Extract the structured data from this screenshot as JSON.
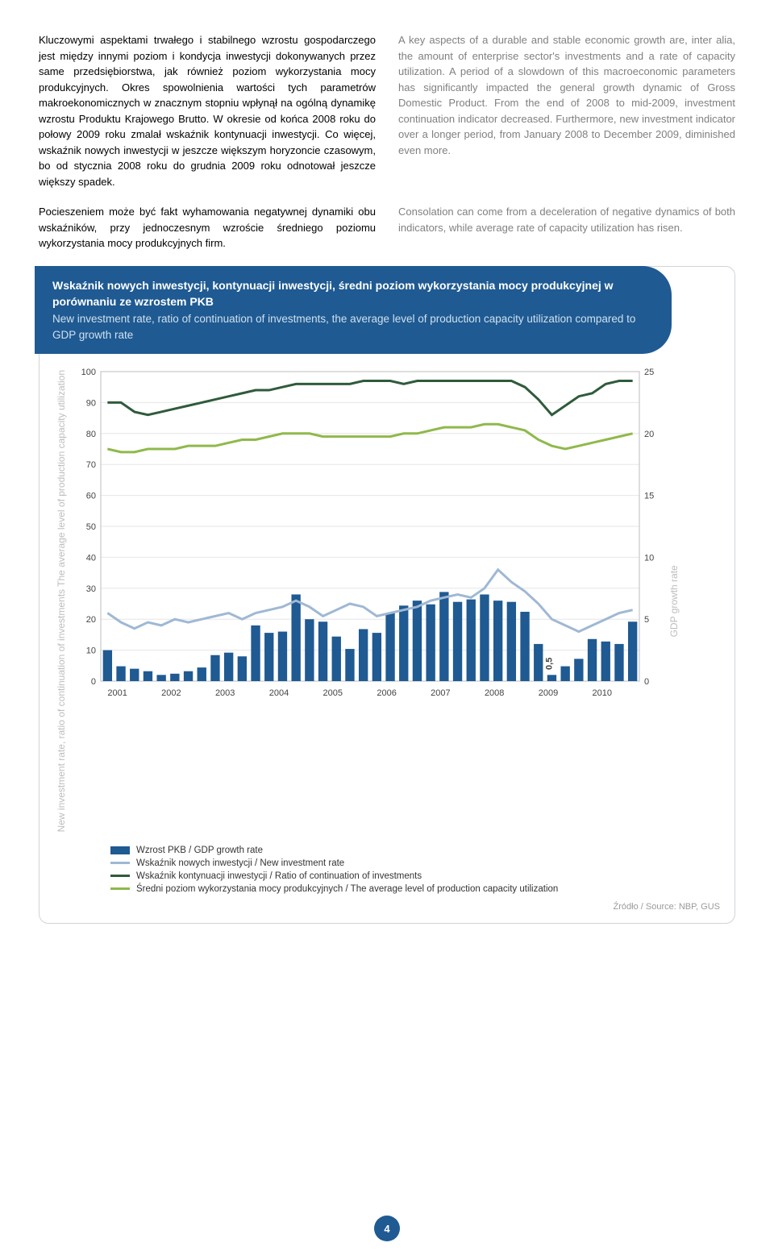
{
  "text": {
    "pl1": "Kluczowymi aspektami trwałego i stabilnego wzrostu gospodarczego jest między innymi poziom i kondycja inwestycji dokonywanych przez same przedsiębiorstwa, jak również poziom wykorzystania mocy produkcyjnych. Okres spowolnienia wartości tych parametrów makroekonomicznych w znacznym stopniu wpłynął na ogólną dynamikę wzrostu Produktu Krajowego Brutto. W okresie od końca 2008 roku do połowy 2009 roku zmalał wskaźnik kontynuacji inwestycji. Co więcej, wskaźnik nowych inwestycji w jeszcze większym horyzoncie czasowym, bo od stycznia 2008 roku do grudnia 2009 roku odnotował jeszcze większy spadek.",
    "en1": "A key aspects of a durable and stable economic growth are, inter alia, the amount of enterprise sector's investments and a rate of capacity utilization. A period of a slowdown of this macroeconomic parameters has significantly impacted the general growth dynamic of Gross Domestic Product. From the end of 2008 to mid-2009, investment continuation indicator decreased. Furthermore, new investment indicator over a longer period, from January 2008 to December 2009, diminished even more.",
    "pl2": "Pocieszeniem może być fakt wyhamowania negatywnej dynamiki obu wskaźników, przy jednoczesnym wzroście średniego poziomu wykorzystania mocy produkcyjnych firm.",
    "en2": "Consolation can come from a deceleration of negative dynamics of both indicators, while average rate of capacity utilization has risen."
  },
  "chart": {
    "header_pl": "Wskaźnik nowych inwestycji, kontynuacji inwestycji, średni poziom wykorzystania mocy produkcyjnej w porównaniu ze wzrostem PKB",
    "header_en": "New investment rate, ratio of continuation of investments, the average level of production capacity utilization compared to GDP growth rate",
    "ylabel_left": "New investment rate, ratio of continuation of investments\nThe average level of production capacity utilization",
    "ylabel_right": "GDP growth rate",
    "y_left": {
      "min": 0,
      "max": 100,
      "step": 10
    },
    "y_right": {
      "min": 0,
      "max": 25,
      "step": 5
    },
    "x_years": [
      "2001",
      "2002",
      "2003",
      "2004",
      "2005",
      "2006",
      "2007",
      "2008",
      "2009",
      "2010"
    ],
    "colors": {
      "bar": "#1f5a92",
      "line_new": "#9fb8d4",
      "line_cont": "#2f5b3b",
      "line_cap": "#8fb94a",
      "grid": "#e6e6e6",
      "axis": "#bdbdbd",
      "bg": "#ffffff"
    },
    "bar_annotation": {
      "index": 33,
      "label": "0,5"
    },
    "series": {
      "gdp_bars": [
        2.5,
        1.2,
        1.0,
        0.8,
        0.5,
        0.6,
        0.8,
        1.1,
        2.1,
        2.3,
        2.0,
        4.5,
        3.9,
        4.0,
        7.0,
        5.0,
        4.8,
        3.6,
        2.6,
        4.2,
        3.9,
        5.5,
        6.1,
        6.5,
        6.2,
        7.2,
        6.4,
        6.6,
        7.0,
        6.5,
        6.4,
        5.6,
        3.0,
        0.5,
        1.2,
        1.8,
        3.4,
        3.2,
        3.0,
        4.8
      ],
      "new_inv": [
        22,
        19,
        17,
        19,
        18,
        20,
        19,
        20,
        21,
        22,
        20,
        22,
        23,
        24,
        26,
        24,
        21,
        23,
        25,
        24,
        21,
        22,
        23,
        24,
        26,
        27,
        28,
        27,
        30,
        36,
        32,
        29,
        25,
        20,
        18,
        16,
        18,
        20,
        22,
        23
      ],
      "cont_inv": [
        90,
        90,
        87,
        86,
        87,
        88,
        89,
        90,
        91,
        92,
        93,
        94,
        94,
        95,
        96,
        96,
        96,
        96,
        96,
        97,
        97,
        97,
        96,
        97,
        97,
        97,
        97,
        97,
        97,
        97,
        97,
        95,
        91,
        86,
        89,
        92,
        93,
        96,
        97,
        97
      ],
      "capacity": [
        75,
        74,
        74,
        75,
        75,
        75,
        76,
        76,
        76,
        77,
        78,
        78,
        79,
        80,
        80,
        80,
        79,
        79,
        79,
        79,
        79,
        79,
        80,
        80,
        81,
        82,
        82,
        82,
        83,
        83,
        82,
        81,
        78,
        76,
        75,
        76,
        77,
        78,
        79,
        80
      ]
    },
    "legend": {
      "l1": "Wzrost PKB / GDP growth rate",
      "l2": "Wskaźnik nowych inwestycji / New investment rate",
      "l3": "Wskaźnik kontynuacji inwestycji / Ratio of continuation of investments",
      "l4": "Średni poziom wykorzystania mocy produkcyjnych / The average level of production capacity utilization"
    },
    "source": "Źródło / Source: NBP, GUS"
  },
  "page_number": "4"
}
